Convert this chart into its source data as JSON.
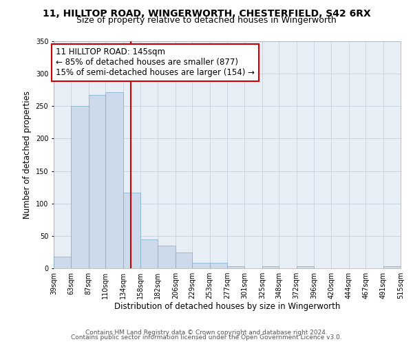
{
  "title": "11, HILLTOP ROAD, WINGERWORTH, CHESTERFIELD, S42 6RX",
  "subtitle": "Size of property relative to detached houses in Wingerworth",
  "xlabel": "Distribution of detached houses by size in Wingerworth",
  "ylabel": "Number of detached properties",
  "bar_heights": [
    18,
    250,
    267,
    272,
    117,
    45,
    35,
    24,
    9,
    9,
    3,
    0,
    3,
    0,
    3,
    0,
    0,
    0,
    0,
    3,
    0
  ],
  "bin_edges": [
    39,
    63,
    87,
    110,
    134,
    158,
    182,
    206,
    229,
    253,
    277,
    301,
    325,
    348,
    372,
    396,
    420,
    444,
    467,
    491,
    515
  ],
  "tick_labels": [
    "39sqm",
    "63sqm",
    "87sqm",
    "110sqm",
    "134sqm",
    "158sqm",
    "182sqm",
    "206sqm",
    "229sqm",
    "253sqm",
    "277sqm",
    "301sqm",
    "325sqm",
    "348sqm",
    "372sqm",
    "396sqm",
    "420sqm",
    "444sqm",
    "467sqm",
    "491sqm",
    "515sqm"
  ],
  "bar_color": "#ccdaeb",
  "bar_edge_color": "#7aaac8",
  "vline_x": 145,
  "vline_color": "#cc0000",
  "annotation_box_color": "#cc0000",
  "annotation_lines": [
    "11 HILLTOP ROAD: 145sqm",
    "← 85% of detached houses are smaller (877)",
    "15% of semi-detached houses are larger (154) →"
  ],
  "ylim": [
    0,
    350
  ],
  "yticks": [
    0,
    50,
    100,
    150,
    200,
    250,
    300,
    350
  ],
  "footer_lines": [
    "Contains HM Land Registry data © Crown copyright and database right 2024.",
    "Contains public sector information licensed under the Open Government Licence v3.0."
  ],
  "background_color": "#ffffff",
  "plot_bg_color": "#e8eef6",
  "grid_color": "#c5cfe0",
  "title_fontsize": 10,
  "subtitle_fontsize": 9,
  "axis_label_fontsize": 8.5,
  "tick_fontsize": 7,
  "annotation_fontsize": 8.5,
  "footer_fontsize": 6.5
}
